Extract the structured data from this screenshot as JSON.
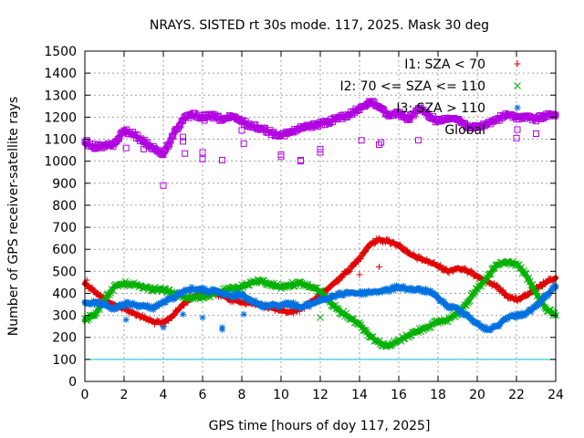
{
  "chart_data": {
    "type": "scatter",
    "title": "NRAYS. SISTED rt 30s mode. 117, 2025. Mask 30 deg",
    "xlabel": "GPS time [hours of doy 117, 2025]",
    "ylabel": "Number of GPS receiver-satellite rays",
    "xlim": [
      0,
      24
    ],
    "ylim": [
      0,
      1500
    ],
    "x_ticks": [
      0,
      2,
      4,
      6,
      8,
      10,
      12,
      14,
      16,
      18,
      20,
      22,
      24
    ],
    "y_ticks": [
      0,
      100,
      200,
      300,
      400,
      500,
      600,
      700,
      800,
      900,
      1000,
      1100,
      1200,
      1300,
      1400,
      1500
    ],
    "x_tick_labels": [
      "0",
      "2",
      "4",
      "6",
      "8",
      "10",
      "12",
      "14",
      "16",
      "18",
      "20",
      "22",
      "24"
    ],
    "y_tick_labels": [
      "0",
      "100",
      "200",
      "300",
      "400",
      "500",
      "600",
      "700",
      "800",
      "900",
      "1000",
      "1100",
      "1200",
      "1300",
      "1400",
      "1500"
    ],
    "grid": true,
    "legend_position": "top-right",
    "reference_line": {
      "y": 100,
      "color": "#00c8d8"
    },
    "series": [
      {
        "name": "I1: SZA < 70",
        "marker": "plus",
        "color": "#e00000",
        "x": [
          0,
          0.5,
          1,
          1.5,
          2,
          2.5,
          3,
          3.5,
          4,
          4.5,
          5,
          5.5,
          6,
          6.5,
          7,
          7.5,
          8,
          8.5,
          9,
          9.5,
          10,
          10.5,
          11,
          11.5,
          12,
          12.5,
          13,
          13.5,
          14,
          14.5,
          15,
          15.5,
          16,
          16.5,
          17,
          17.5,
          18,
          18.5,
          19,
          19.5,
          20,
          20.5,
          21,
          21.5,
          22,
          22.5,
          23,
          23.5,
          24
        ],
        "values": [
          445,
          410,
          370,
          345,
          330,
          310,
          290,
          270,
          265,
          300,
          350,
          385,
          395,
          400,
          390,
          370,
          360,
          355,
          345,
          335,
          320,
          315,
          330,
          360,
          390,
          430,
          470,
          510,
          560,
          620,
          645,
          635,
          620,
          580,
          560,
          545,
          525,
          500,
          515,
          500,
          480,
          455,
          430,
          390,
          370,
          390,
          420,
          450,
          470
        ]
      },
      {
        "name": "I2: 70 <= SZA <= 110",
        "marker": "cross",
        "color": "#00b000",
        "x": [
          0,
          0.5,
          1,
          1.5,
          2,
          2.5,
          3,
          3.5,
          4,
          4.5,
          5,
          5.5,
          6,
          6.5,
          7,
          7.5,
          8,
          8.5,
          9,
          9.5,
          10,
          10.5,
          11,
          11.5,
          12,
          12.5,
          13,
          13.5,
          14,
          14.5,
          15,
          15.5,
          16,
          16.5,
          17,
          17.5,
          18,
          18.5,
          19,
          19.5,
          20,
          20.5,
          21,
          21.5,
          22,
          22.5,
          23,
          23.5,
          24
        ],
        "values": [
          280,
          300,
          370,
          430,
          445,
          440,
          430,
          420,
          415,
          400,
          385,
          380,
          385,
          395,
          410,
          420,
          430,
          450,
          455,
          440,
          430,
          440,
          445,
          430,
          410,
          360,
          320,
          290,
          260,
          210,
          175,
          160,
          185,
          210,
          230,
          250,
          270,
          280,
          310,
          360,
          420,
          470,
          530,
          540,
          535,
          480,
          400,
          330,
          300
        ]
      },
      {
        "name": "I3: SZA > 110",
        "marker": "asterisk",
        "color": "#0070e0",
        "x": [
          0,
          0.5,
          1,
          1.5,
          2,
          2.5,
          3,
          3.5,
          4,
          4.5,
          5,
          5.5,
          6,
          6.5,
          7,
          7.5,
          8,
          8.5,
          9,
          9.5,
          10,
          10.5,
          11,
          11.5,
          12,
          12.5,
          13,
          13.5,
          14,
          14.5,
          15,
          15.5,
          16,
          16.5,
          17,
          17.5,
          18,
          18.5,
          19,
          19.5,
          20,
          20.5,
          21,
          21.5,
          22,
          22.5,
          23,
          23.5,
          24
        ],
        "values": [
          360,
          355,
          345,
          330,
          350,
          350,
          340,
          335,
          360,
          380,
          410,
          420,
          415,
          410,
          400,
          385,
          395,
          370,
          340,
          350,
          345,
          355,
          335,
          350,
          370,
          380,
          395,
          405,
          400,
          405,
          410,
          415,
          430,
          420,
          415,
          410,
          380,
          340,
          330,
          300,
          260,
          235,
          250,
          290,
          300,
          310,
          340,
          390,
          430
        ]
      },
      {
        "name": "Global",
        "marker": "square",
        "color": "#b000e0",
        "x": [
          0,
          0.5,
          1,
          1.5,
          2,
          2.5,
          3,
          3.5,
          4,
          4.5,
          5,
          5.5,
          6,
          6.5,
          7,
          7.5,
          8,
          8.5,
          9,
          9.5,
          10,
          10.5,
          11,
          11.5,
          12,
          12.5,
          13,
          13.5,
          14,
          14.5,
          15,
          15.5,
          16,
          16.5,
          17,
          17.5,
          18,
          18.5,
          19,
          19.5,
          20,
          20.5,
          21,
          21.5,
          22,
          22.5,
          23,
          23.5,
          24
        ],
        "values": [
          1080,
          1065,
          1070,
          1075,
          1140,
          1120,
          1090,
          1060,
          1030,
          1120,
          1190,
          1210,
          1200,
          1205,
          1190,
          1200,
          1180,
          1160,
          1150,
          1130,
          1120,
          1130,
          1150,
          1160,
          1170,
          1180,
          1200,
          1210,
          1240,
          1270,
          1250,
          1210,
          1220,
          1190,
          1240,
          1210,
          1180,
          1200,
          1190,
          1160,
          1150,
          1170,
          1190,
          1210,
          1200,
          1200,
          1190,
          1210,
          1210
        ]
      }
    ],
    "outliers": {
      "I1: SZA < 70": {
        "x": [
          0.1,
          4.0,
          14.0,
          15.0
        ],
        "values": [
          460,
          250,
          485,
          520
        ]
      },
      "I2: 70 <= SZA <= 110": {
        "x": [
          0.1,
          12.0
        ],
        "values": [
          275,
          290
        ]
      },
      "I3: SZA > 110": {
        "x": [
          0.1,
          2.1,
          4.0,
          5.0,
          6.0,
          7.0,
          7.0,
          8.1
        ],
        "values": [
          355,
          280,
          245,
          305,
          290,
          245,
          235,
          305
        ]
      },
      "Global": {
        "x": [
          0.1,
          2.1,
          3.0,
          4.0,
          5.0,
          5.0,
          5.1,
          6.0,
          6.0,
          6.1,
          7.0,
          8.0,
          8.1,
          10.0,
          10.0,
          11.0,
          11.0,
          12.0,
          12.0,
          14.1,
          15.0,
          15.1,
          17.0,
          22.0,
          23.0
        ],
        "values": [
          1095,
          1060,
          1055,
          890,
          1090,
          1110,
          1035,
          1040,
          1010,
          1185,
          1005,
          1140,
          1080,
          1020,
          1030,
          1005,
          1000,
          1040,
          1055,
          1095,
          1075,
          1085,
          1095,
          1105,
          1125
        ]
      }
    }
  }
}
